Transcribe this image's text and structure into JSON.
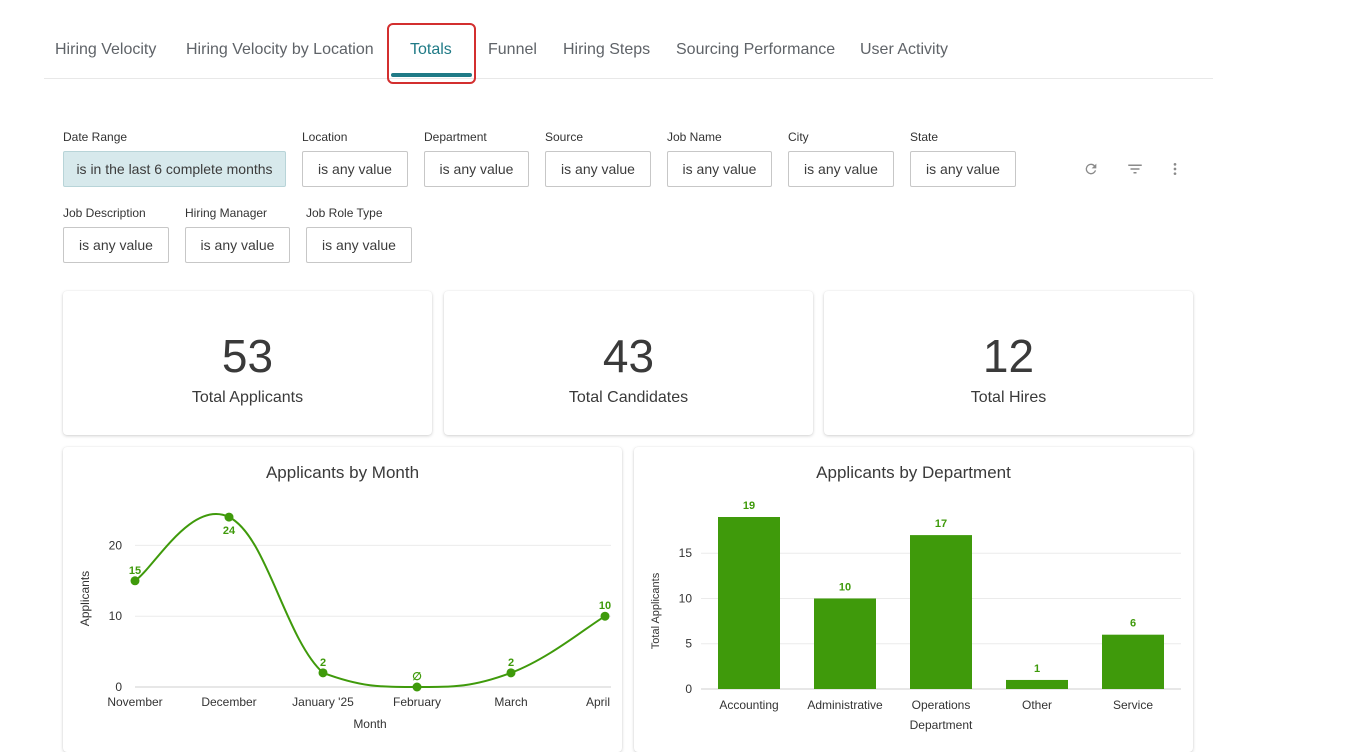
{
  "tabs": [
    {
      "label": "Hiring Velocity"
    },
    {
      "label": "Hiring Velocity by Location"
    },
    {
      "label": "Totals"
    },
    {
      "label": "Funnel"
    },
    {
      "label": "Hiring Steps"
    },
    {
      "label": "Sourcing Performance"
    },
    {
      "label": "User Activity"
    }
  ],
  "filters": [
    {
      "label": "Date Range",
      "value": "is in the last 6 complete months"
    },
    {
      "label": "Location",
      "value": "is any value"
    },
    {
      "label": "Department",
      "value": "is any value"
    },
    {
      "label": "Source",
      "value": "is any value"
    },
    {
      "label": "Job Name",
      "value": "is any value"
    },
    {
      "label": "City",
      "value": "is any value"
    },
    {
      "label": "State",
      "value": "is any value"
    },
    {
      "label": "Job Description",
      "value": "is any value"
    },
    {
      "label": "Hiring Manager",
      "value": "is any value"
    },
    {
      "label": "Job Role Type",
      "value": "is any value"
    }
  ],
  "toolbar_icons": [
    "refresh-icon",
    "filter-icon",
    "more-vertical-icon"
  ],
  "kpis": [
    {
      "value": "53",
      "label": "Total Applicants"
    },
    {
      "value": "43",
      "label": "Total Candidates"
    },
    {
      "value": "12",
      "label": "Total Hires"
    }
  ],
  "colors": {
    "accent": "#1f7a86",
    "series": "#3f9a0b",
    "highlight": "#d32f2f"
  },
  "chart_data": [
    {
      "type": "line",
      "title": "Applicants by Month",
      "xlabel": "Month",
      "ylabel": "Applicants",
      "categories": [
        "November",
        "December",
        "January '25",
        "February",
        "March",
        "April"
      ],
      "values": [
        15,
        24,
        2,
        0,
        2,
        10
      ],
      "data_labels": [
        "15",
        "24",
        "2",
        "∅",
        "2",
        "10"
      ],
      "yticks": [
        0,
        10,
        20
      ],
      "ylim": [
        0,
        25
      ],
      "grid": true
    },
    {
      "type": "bar",
      "title": "Applicants by Department",
      "xlabel": "Department",
      "ylabel": "Total Applicants",
      "categories": [
        "Accounting",
        "Administrative",
        "Operations",
        "Other",
        "Service"
      ],
      "values": [
        19,
        10,
        17,
        1,
        6
      ],
      "yticks": [
        0,
        5,
        10,
        15
      ],
      "ylim": [
        0,
        19
      ],
      "grid": true
    }
  ]
}
